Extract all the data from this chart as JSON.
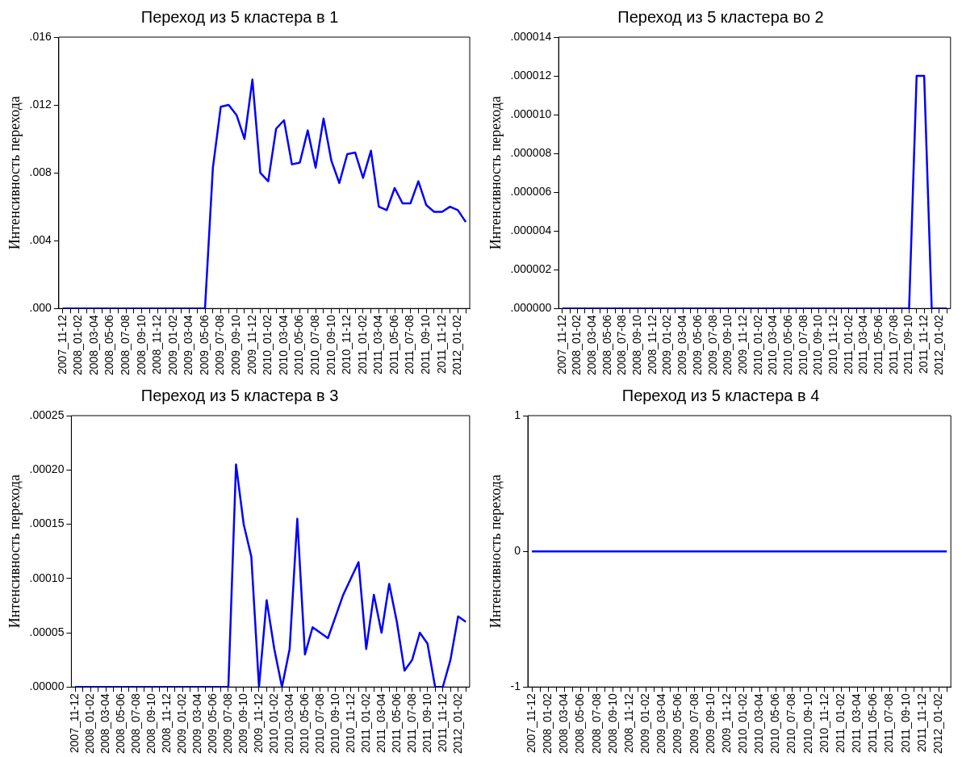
{
  "chart_data": [
    {
      "type": "line",
      "title": "Переход из 5 кластера в 1",
      "ylabel": "Интенсивность перехода",
      "categories": [
        "2007_11-12",
        null,
        "2008_01-02",
        null,
        "2008_03-04",
        null,
        "2008_05-06",
        null,
        "2008_07-08",
        null,
        "2008_09-10",
        null,
        "2008_11-12",
        null,
        "2009_01-02",
        null,
        "2009_03-04",
        null,
        "2009_05-06",
        null,
        "2009_07-08",
        null,
        "2009_09-10",
        null,
        "2009_11-12",
        null,
        "2010_01-02",
        null,
        "2010_03-04",
        null,
        "2010_05-06",
        null,
        "2010_07-08",
        null,
        "2010_09-10",
        null,
        "2010_11-12",
        null,
        "2011_01-02",
        null,
        "2011_03-04",
        null,
        "2011_05-06",
        null,
        "2011_07-08",
        null,
        "2011_09-10",
        null,
        "2011_11-12",
        null,
        "2012_01-02",
        null
      ],
      "series": [
        {
          "color": "#0000ff",
          "values": [
            0,
            0,
            0,
            0,
            0,
            0,
            0,
            0,
            0,
            0,
            0,
            0,
            0,
            0,
            0,
            0,
            0,
            0,
            0,
            0.0083,
            0.0119,
            0.012,
            0.0114,
            0.01,
            0.0135,
            0.008,
            0.0075,
            0.0106,
            0.0111,
            0.0085,
            0.0086,
            0.0105,
            0.0083,
            0.0112,
            0.0087,
            0.0074,
            0.0091,
            0.0092,
            0.0077,
            0.0093,
            0.006,
            0.0058,
            0.0071,
            0.0062,
            0.0062,
            0.0075,
            0.0061,
            0.0057,
            0.0057,
            0.006,
            0.0058,
            0.0051
          ]
        }
      ],
      "ylim": [
        0,
        0.016
      ],
      "yticks": [
        {
          "value": 0,
          "label": ".000"
        },
        {
          "value": 0.004,
          "label": ".004"
        },
        {
          "value": 0.008,
          "label": ".008"
        },
        {
          "value": 0.012,
          "label": ".012"
        },
        {
          "value": 0.016,
          "label": ".016"
        }
      ]
    },
    {
      "type": "line",
      "title": "Переход из 5 кластера во 2",
      "ylabel": "Интенсивность перехода",
      "categories": [
        "2007_11-12",
        null,
        "2008_01-02",
        null,
        "2008_03-04",
        null,
        "2008_05-06",
        null,
        "2008_07-08",
        null,
        "2008_09-10",
        null,
        "2008_11-12",
        null,
        "2009_01-02",
        null,
        "2009_03-04",
        null,
        "2009_05-06",
        null,
        "2009_07-08",
        null,
        "2009_09-10",
        null,
        "2009_11-12",
        null,
        "2010_01-02",
        null,
        "2010_03-04",
        null,
        "2010_05-06",
        null,
        "2010_07-08",
        null,
        "2010_09-10",
        null,
        "2010_11-12",
        null,
        "2011_01-02",
        null,
        "2011_03-04",
        null,
        "2011_05-06",
        null,
        "2011_07-08",
        null,
        "2011_09-10",
        null,
        "2011_11-12",
        null,
        "2012_01-02",
        null
      ],
      "series": [
        {
          "color": "#0000ff",
          "values": [
            0,
            0,
            0,
            0,
            0,
            0,
            0,
            0,
            0,
            0,
            0,
            0,
            0,
            0,
            0,
            0,
            0,
            0,
            0,
            0,
            0,
            0,
            0,
            0,
            0,
            0,
            0,
            0,
            0,
            0,
            0,
            0,
            0,
            0,
            0,
            0,
            0,
            0,
            0,
            0,
            0,
            0,
            0,
            0,
            0,
            0,
            0,
            1.2e-05,
            1.2e-05,
            0,
            0,
            0
          ]
        }
      ],
      "ylim": [
        0,
        1.4e-05
      ],
      "yticks": [
        {
          "value": 0,
          "label": ".000000"
        },
        {
          "value": 2e-06,
          "label": ".000002"
        },
        {
          "value": 4e-06,
          "label": ".000004"
        },
        {
          "value": 6e-06,
          "label": ".000006"
        },
        {
          "value": 8e-06,
          "label": ".000008"
        },
        {
          "value": 1e-05,
          "label": ".000010"
        },
        {
          "value": 1.2e-05,
          "label": ".000012"
        },
        {
          "value": 1.4e-05,
          "label": ".000014"
        }
      ]
    },
    {
      "type": "line",
      "title": "Переход из 5 кластера в 3",
      "ylabel": "Интенсивность перехода",
      "categories": [
        "2007_11-12",
        null,
        "2008_01-02",
        null,
        "2008_03-04",
        null,
        "2008_05-06",
        null,
        "2008_07-08",
        null,
        "2008_09-10",
        null,
        "2008_11-12",
        null,
        "2009_01-02",
        null,
        "2009_03-04",
        null,
        "2009_05-06",
        null,
        "2009_07-08",
        null,
        "2009_09-10",
        null,
        "2009_11-12",
        null,
        "2010_01-02",
        null,
        "2010_03-04",
        null,
        "2010_05-06",
        null,
        "2010_07-08",
        null,
        "2010_09-10",
        null,
        "2010_11-12",
        null,
        "2011_01-02",
        null,
        "2011_03-04",
        null,
        "2011_05-06",
        null,
        "2011_07-08",
        null,
        "2011_09-10",
        null,
        "2011_11-12",
        null,
        "2012_01-02",
        null
      ],
      "series": [
        {
          "color": "#0000ff",
          "values": [
            0,
            0,
            0,
            0,
            0,
            0,
            0,
            0,
            0,
            0,
            0,
            0,
            0,
            0,
            0,
            0,
            0,
            0,
            0,
            0,
            0,
            0.000205,
            0.00015,
            0.00012,
            0,
            8e-05,
            3.5e-05,
            0,
            3.5e-05,
            0.000155,
            3e-05,
            5.5e-05,
            5e-05,
            4.5e-05,
            6.5e-05,
            8.5e-05,
            0.0001,
            0.000115,
            3.5e-05,
            8.5e-05,
            5e-05,
            9.5e-05,
            6e-05,
            1.5e-05,
            2.5e-05,
            5e-05,
            4e-05,
            0,
            0,
            2.5e-05,
            6.5e-05,
            6e-05
          ]
        }
      ],
      "ylim": [
        0,
        0.00025
      ],
      "yticks": [
        {
          "value": 0,
          "label": ".00000"
        },
        {
          "value": 5e-05,
          "label": ".00005"
        },
        {
          "value": 0.0001,
          "label": ".00010"
        },
        {
          "value": 0.00015,
          "label": ".00015"
        },
        {
          "value": 0.0002,
          "label": ".00020"
        },
        {
          "value": 0.00025,
          "label": ".00025"
        }
      ]
    },
    {
      "type": "line",
      "title": "Переход из 5 кластера в 4",
      "ylabel": "Интенсивность перехода",
      "categories": [
        "2007_11-12",
        null,
        "2008_01-02",
        null,
        "2008_03-04",
        null,
        "2008_05-06",
        null,
        "2008_07-08",
        null,
        "2008_09-10",
        null,
        "2008_11-12",
        null,
        "2009_01-02",
        null,
        "2009_03-04",
        null,
        "2009_05-06",
        null,
        "2009_07-08",
        null,
        "2009_09-10",
        null,
        "2009_11-12",
        null,
        "2010_01-02",
        null,
        "2010_03-04",
        null,
        "2010_05-06",
        null,
        "2010_07-08",
        null,
        "2010_09-10",
        null,
        "2010_11-12",
        null,
        "2011_01-02",
        null,
        "2011_03-04",
        null,
        "2011_05-06",
        null,
        "2011_07-08",
        null,
        "2011_09-10",
        null,
        "2011_11-12",
        null,
        "2012_01-02",
        null
      ],
      "series": [
        {
          "color": "#0000ff",
          "values": [
            0,
            0,
            0,
            0,
            0,
            0,
            0,
            0,
            0,
            0,
            0,
            0,
            0,
            0,
            0,
            0,
            0,
            0,
            0,
            0,
            0,
            0,
            0,
            0,
            0,
            0,
            0,
            0,
            0,
            0,
            0,
            0,
            0,
            0,
            0,
            0,
            0,
            0,
            0,
            0,
            0,
            0,
            0,
            0,
            0,
            0,
            0,
            0,
            0,
            0,
            0,
            0
          ]
        }
      ],
      "ylim": [
        -1,
        1
      ],
      "yticks": [
        -1,
        0,
        1
      ]
    }
  ]
}
